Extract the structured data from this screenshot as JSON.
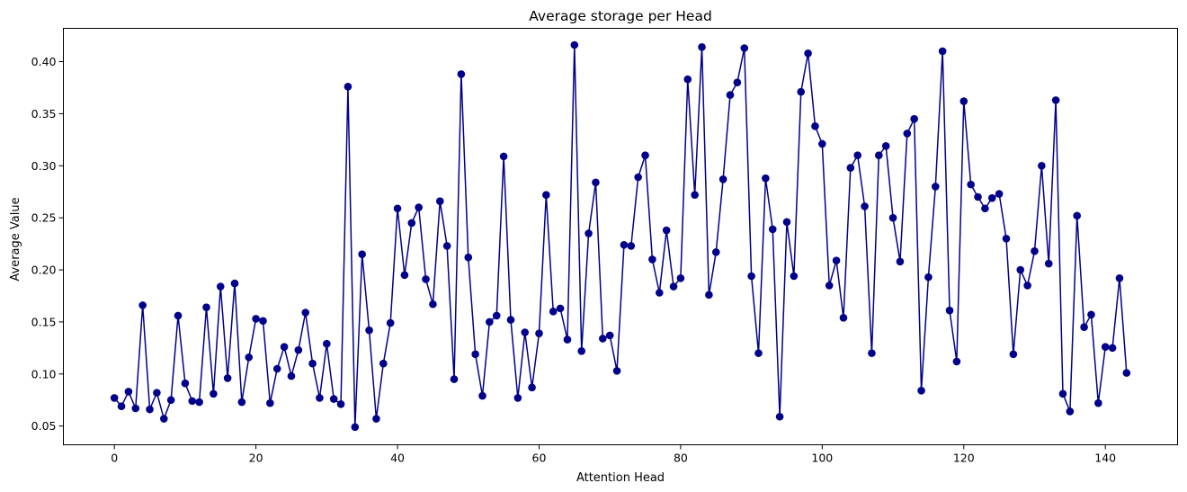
{
  "chart_data": {
    "type": "line",
    "title": "Average storage per Head",
    "xlabel": "Attention Head",
    "ylabel": "Average Value",
    "xlim": [
      -7.2,
      150.2
    ],
    "ylim": [
      0.032,
      0.432
    ],
    "xticks": [
      0,
      20,
      40,
      60,
      80,
      100,
      120,
      140
    ],
    "xtick_labels": [
      "0",
      "20",
      "40",
      "60",
      "80",
      "100",
      "120",
      "140"
    ],
    "yticks": [
      0.05,
      0.1,
      0.15,
      0.2,
      0.25,
      0.3,
      0.35,
      0.4
    ],
    "ytick_labels": [
      "0.05",
      "0.10",
      "0.15",
      "0.20",
      "0.25",
      "0.30",
      "0.35",
      "0.40"
    ],
    "grid": false,
    "series_color": "#00008b",
    "marker": "circle",
    "series": [
      {
        "x": [
          0,
          1,
          2,
          3,
          4,
          5,
          6,
          7,
          8,
          9,
          10,
          11,
          12,
          13,
          14,
          15,
          16,
          17,
          18,
          19,
          20,
          21,
          22,
          23,
          24,
          25,
          26,
          27,
          28,
          29,
          30,
          31,
          32,
          33,
          34,
          35,
          36,
          37,
          38,
          39,
          40,
          41,
          42,
          43,
          44,
          45,
          46,
          47,
          48,
          49,
          50,
          51,
          52,
          53,
          54,
          55,
          56,
          57,
          58,
          59,
          60,
          61,
          62,
          63,
          64,
          65,
          66,
          67,
          68,
          69,
          70,
          71,
          72,
          73,
          74,
          75,
          76,
          77,
          78,
          79,
          80,
          81,
          82,
          83,
          84,
          85,
          86,
          87,
          88,
          89,
          90,
          91,
          92,
          93,
          94,
          95,
          96,
          97,
          98,
          99,
          100,
          101,
          102,
          103,
          104,
          105,
          106,
          107,
          108,
          109,
          110,
          111,
          112,
          113,
          114,
          115,
          116,
          117,
          118,
          119,
          120,
          121,
          122,
          123,
          124,
          125,
          126,
          127,
          128,
          129,
          130,
          131,
          132,
          133,
          134,
          135,
          136,
          137,
          138,
          139,
          140,
          141,
          142,
          143
        ],
        "values": [
          0.077,
          0.069,
          0.083,
          0.067,
          0.166,
          0.066,
          0.082,
          0.057,
          0.075,
          0.156,
          0.091,
          0.074,
          0.073,
          0.164,
          0.081,
          0.184,
          0.096,
          0.187,
          0.073,
          0.116,
          0.153,
          0.151,
          0.072,
          0.105,
          0.126,
          0.098,
          0.123,
          0.159,
          0.11,
          0.077,
          0.129,
          0.076,
          0.071,
          0.376,
          0.049,
          0.215,
          0.142,
          0.057,
          0.11,
          0.149,
          0.259,
          0.195,
          0.245,
          0.26,
          0.191,
          0.167,
          0.266,
          0.223,
          0.095,
          0.388,
          0.212,
          0.119,
          0.079,
          0.15,
          0.156,
          0.309,
          0.152,
          0.077,
          0.14,
          0.087,
          0.139,
          0.272,
          0.16,
          0.163,
          0.133,
          0.416,
          0.122,
          0.235,
          0.284,
          0.134,
          0.137,
          0.103,
          0.224,
          0.223,
          0.289,
          0.31,
          0.21,
          0.178,
          0.238,
          0.184,
          0.192,
          0.383,
          0.272,
          0.414,
          0.176,
          0.217,
          0.287,
          0.368,
          0.38,
          0.413,
          0.194,
          0.12,
          0.288,
          0.239,
          0.059,
          0.246,
          0.194,
          0.371,
          0.408,
          0.338,
          0.321,
          0.185,
          0.209,
          0.154,
          0.298,
          0.31,
          0.261,
          0.12,
          0.31,
          0.319,
          0.25,
          0.208,
          0.331,
          0.345,
          0.084,
          0.193,
          0.28,
          0.41,
          0.161,
          0.112,
          0.362,
          0.282,
          0.27,
          0.259,
          0.269,
          0.273,
          0.23,
          0.119,
          0.2,
          0.185,
          0.218,
          0.3,
          0.206,
          0.363,
          0.081,
          0.064,
          0.252,
          0.145,
          0.157,
          0.072,
          0.126,
          0.125,
          0.192,
          0.101
        ]
      }
    ]
  }
}
